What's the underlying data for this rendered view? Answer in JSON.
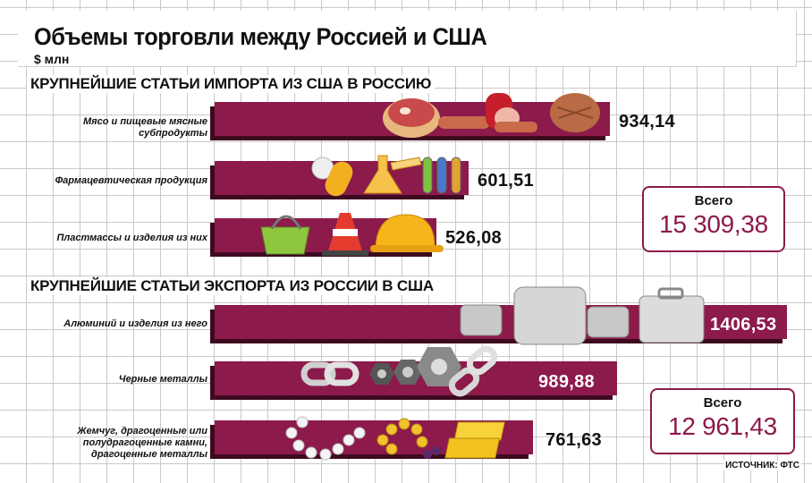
{
  "title": "Объемы торговли между Россией и США",
  "unit": "$ млн",
  "source": "ИСТОЧНИК: ФТС",
  "colors": {
    "bar": "#8c1a4b",
    "bar_shadow": "#3d0a20"
  },
  "chart_data": [
    {
      "type": "bar",
      "title": "КРУПНЕЙШИЕ СТАТЬИ ИМПОРТА ИЗ США В РОССИЮ",
      "categories": [
        "Мясо и пищевые мясные субпродукты",
        "Фармацевтическая продукция",
        "Пластмассы и изделия из них"
      ],
      "values": [
        934.14,
        601.51,
        526.08
      ],
      "value_labels": [
        "934,14",
        "601,51",
        "526,08"
      ],
      "total_label": "Всего",
      "total": "15 309,38"
    },
    {
      "type": "bar",
      "title": "КРУПНЕЙШИЕ СТАТЬИ ЭКСПОРТА ИЗ РОССИИ В США",
      "categories": [
        "Алюминий и изделия из него",
        "Черные металлы",
        "Жемчуг, драгоценные или полудрагоценные камни, драгоценные металлы"
      ],
      "values": [
        1406.53,
        989.88,
        761.63
      ],
      "value_labels": [
        "1406,53",
        "989,88",
        "761,63"
      ],
      "total_label": "Всего",
      "total": "12 961,43"
    }
  ]
}
